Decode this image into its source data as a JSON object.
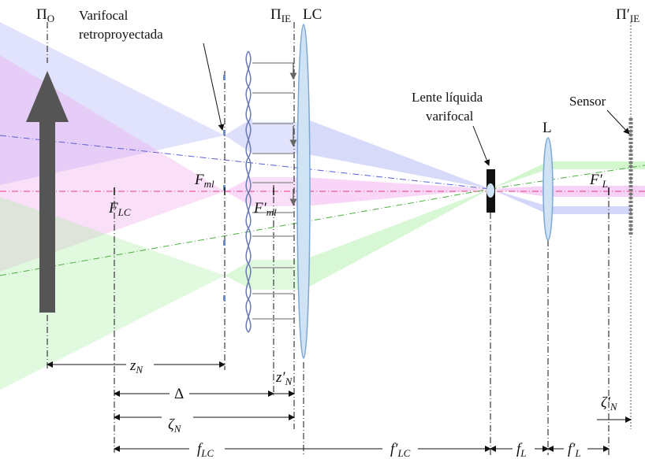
{
  "planes": {
    "object": {
      "main": "Π",
      "sub": "O"
    },
    "image": {
      "main": "Π",
      "sub": "IE"
    },
    "image_prime": {
      "main": "Π′",
      "sub": "IE"
    }
  },
  "components": {
    "varifocal_retro": [
      "Varifocal",
      "retroproyectada"
    ],
    "lc": "LC",
    "liquid_lens": [
      "Lente líquida",
      "varifocal"
    ],
    "lens_l": "L",
    "sensor": "Sensor"
  },
  "foci": {
    "f_lc": {
      "main": "F",
      "sub": "LC"
    },
    "f_ml": {
      "main": "F",
      "sub": "ml"
    },
    "f_ml_prime": {
      "main": "F′",
      "sub": "ml"
    },
    "f_l_prime": {
      "main": "F′",
      "sub": "L"
    }
  },
  "distances": {
    "z_n": {
      "main": "z",
      "sub": "N"
    },
    "delta": {
      "main": "Δ"
    },
    "z_n_prime": {
      "main": "z′",
      "sub": "N"
    },
    "zeta_n": {
      "main": "ζ",
      "sub": "N"
    },
    "zeta_n_prime": {
      "main": "ζ′",
      "sub": "N"
    },
    "f_lc": {
      "main": "f",
      "sub": "LC"
    },
    "f_lc_prime": {
      "main": "f′",
      "sub": "LC"
    },
    "f_l": {
      "main": "f",
      "sub": "L"
    },
    "f_l_prime": {
      "main": "f′",
      "sub": "L"
    }
  }
}
